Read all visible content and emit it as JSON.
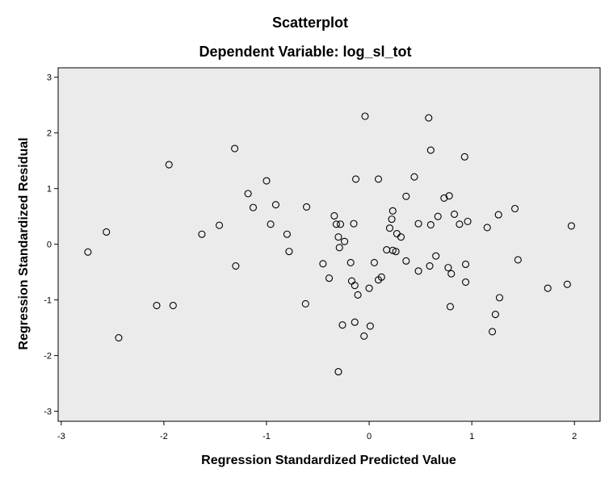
{
  "chart_data": {
    "type": "scatter",
    "title": "Scatterplot",
    "subtitle": "Dependent Variable: log_sl_tot",
    "xlabel": "Regression Standardized Predicted Value",
    "ylabel": "Regression Standardized Residual",
    "xlim": [
      -3.03,
      2.25
    ],
    "ylim": [
      -3.18,
      3.17
    ],
    "xticks": [
      -3,
      -2,
      -1,
      0,
      1,
      2
    ],
    "yticks": [
      -3,
      -2,
      -1,
      0,
      1,
      2,
      3
    ],
    "xtick_labels": [
      "-3",
      "-2",
      "-1",
      "0",
      "1",
      "2"
    ],
    "ytick_labels": [
      "-3",
      "-2",
      "-1",
      "0",
      "1",
      "2",
      "3"
    ],
    "grid": false,
    "plot_background": "#ebebeb",
    "point_color": "#000000",
    "points": [
      {
        "x": -2.74,
        "y": -0.14
      },
      {
        "x": -2.56,
        "y": 0.22
      },
      {
        "x": -2.44,
        "y": -1.68
      },
      {
        "x": -2.07,
        "y": -1.1
      },
      {
        "x": -1.95,
        "y": 1.43
      },
      {
        "x": -1.91,
        "y": -1.1
      },
      {
        "x": -1.63,
        "y": 0.18
      },
      {
        "x": -1.46,
        "y": 0.34
      },
      {
        "x": -1.31,
        "y": 1.72
      },
      {
        "x": -1.3,
        "y": -0.39
      },
      {
        "x": -1.18,
        "y": 0.91
      },
      {
        "x": -1.13,
        "y": 0.66
      },
      {
        "x": -1.0,
        "y": 1.14
      },
      {
        "x": -0.96,
        "y": 0.36
      },
      {
        "x": -0.91,
        "y": 0.71
      },
      {
        "x": -0.8,
        "y": 0.18
      },
      {
        "x": -0.78,
        "y": -0.13
      },
      {
        "x": -0.61,
        "y": 0.67
      },
      {
        "x": -0.62,
        "y": -1.07
      },
      {
        "x": -0.45,
        "y": -0.35
      },
      {
        "x": -0.39,
        "y": -0.61
      },
      {
        "x": -0.34,
        "y": 0.51
      },
      {
        "x": -0.32,
        "y": 0.36
      },
      {
        "x": -0.3,
        "y": 0.13
      },
      {
        "x": -0.29,
        "y": -0.06
      },
      {
        "x": -0.28,
        "y": 0.36
      },
      {
        "x": -0.24,
        "y": 0.05
      },
      {
        "x": -0.18,
        "y": -0.33
      },
      {
        "x": -0.17,
        "y": -0.66
      },
      {
        "x": -0.14,
        "y": -0.74
      },
      {
        "x": -0.15,
        "y": 0.37
      },
      {
        "x": -0.13,
        "y": 1.17
      },
      {
        "x": -0.11,
        "y": -0.91
      },
      {
        "x": -0.14,
        "y": -1.4
      },
      {
        "x": -0.26,
        "y": -1.45
      },
      {
        "x": -0.3,
        "y": -2.29
      },
      {
        "x": -0.05,
        "y": -1.65
      },
      {
        "x": -0.04,
        "y": 2.3
      },
      {
        "x": 0.0,
        "y": -0.79
      },
      {
        "x": 0.01,
        "y": -1.47
      },
      {
        "x": 0.05,
        "y": -0.33
      },
      {
        "x": 0.09,
        "y": -0.64
      },
      {
        "x": 0.09,
        "y": 1.17
      },
      {
        "x": 0.12,
        "y": -0.59
      },
      {
        "x": 0.17,
        "y": -0.1
      },
      {
        "x": 0.2,
        "y": 0.29
      },
      {
        "x": 0.22,
        "y": 0.45
      },
      {
        "x": 0.23,
        "y": 0.6
      },
      {
        "x": 0.23,
        "y": -0.11
      },
      {
        "x": 0.27,
        "y": 0.19
      },
      {
        "x": 0.26,
        "y": -0.13
      },
      {
        "x": 0.31,
        "y": 0.13
      },
      {
        "x": 0.36,
        "y": 0.86
      },
      {
        "x": 0.36,
        "y": -0.3
      },
      {
        "x": 0.44,
        "y": 1.21
      },
      {
        "x": 0.48,
        "y": 0.37
      },
      {
        "x": 0.48,
        "y": -0.48
      },
      {
        "x": 0.58,
        "y": 2.27
      },
      {
        "x": 0.59,
        "y": -0.39
      },
      {
        "x": 0.6,
        "y": 1.69
      },
      {
        "x": 0.6,
        "y": 0.35
      },
      {
        "x": 0.65,
        "y": -0.21
      },
      {
        "x": 0.67,
        "y": 0.5
      },
      {
        "x": 0.73,
        "y": 0.83
      },
      {
        "x": 0.77,
        "y": -0.42
      },
      {
        "x": 0.78,
        "y": 0.87
      },
      {
        "x": 0.8,
        "y": -0.53
      },
      {
        "x": 0.79,
        "y": -1.12
      },
      {
        "x": 0.83,
        "y": 0.54
      },
      {
        "x": 0.88,
        "y": 0.36
      },
      {
        "x": 0.93,
        "y": 1.57
      },
      {
        "x": 0.94,
        "y": -0.36
      },
      {
        "x": 0.94,
        "y": -0.68
      },
      {
        "x": 0.96,
        "y": 0.41
      },
      {
        "x": 1.15,
        "y": 0.3
      },
      {
        "x": 1.2,
        "y": -1.57
      },
      {
        "x": 1.23,
        "y": -1.26
      },
      {
        "x": 1.26,
        "y": 0.53
      },
      {
        "x": 1.27,
        "y": -0.96
      },
      {
        "x": 1.42,
        "y": 0.64
      },
      {
        "x": 1.45,
        "y": -0.28
      },
      {
        "x": 1.74,
        "y": -0.79
      },
      {
        "x": 1.93,
        "y": -0.72
      },
      {
        "x": 1.97,
        "y": 0.33
      }
    ]
  }
}
